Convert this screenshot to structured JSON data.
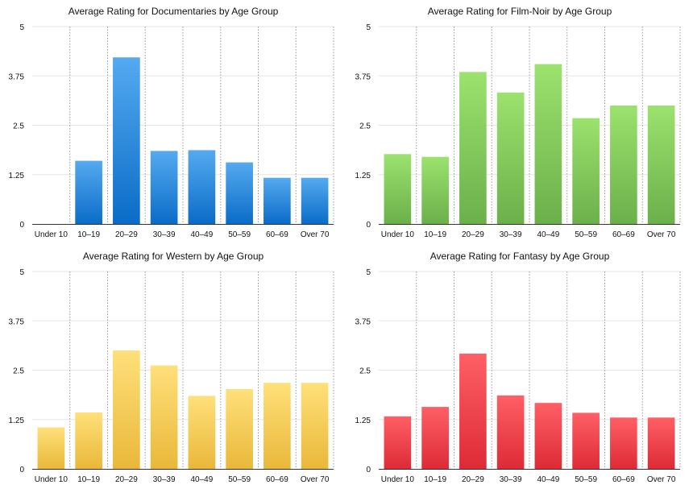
{
  "chart_data": [
    {
      "type": "bar",
      "title": "Average Rating for Documentaries by Age Group",
      "categories": [
        "Under 10",
        "10–19",
        "20–29",
        "30–39",
        "40–49",
        "50–59",
        "60–69",
        "Over 70"
      ],
      "values": [
        0,
        1.6,
        4.22,
        1.85,
        1.87,
        1.56,
        1.17,
        1.17
      ],
      "yticks": [
        "0",
        "1.25",
        "2.5",
        "3.75",
        "5"
      ],
      "ylim": [
        0,
        5
      ],
      "xlabel": "",
      "ylabel": "",
      "grid": true,
      "color_top": "#55aaf0",
      "color_bottom": "#0a6cc7"
    },
    {
      "type": "bar",
      "title": "Average Rating for Film-Noir by Age Group",
      "categories": [
        "Under 10",
        "10–19",
        "20–29",
        "30–39",
        "40–49",
        "50–59",
        "60–69",
        "Over 70"
      ],
      "values": [
        1.77,
        1.7,
        3.85,
        3.33,
        4.05,
        2.68,
        3.0,
        3.0
      ],
      "yticks": [
        "0",
        "1.25",
        "2.5",
        "3.75",
        "5"
      ],
      "ylim": [
        0,
        5
      ],
      "xlabel": "",
      "ylabel": "",
      "grid": true,
      "color_top": "#9be26e",
      "color_bottom": "#6bb04a"
    },
    {
      "type": "bar",
      "title": "Average Rating for Western by Age Group",
      "categories": [
        "Under 10",
        "10–19",
        "20–29",
        "30–39",
        "40–49",
        "50–59",
        "60–69",
        "Over 70"
      ],
      "values": [
        1.05,
        1.43,
        3.0,
        2.62,
        1.85,
        2.02,
        2.18,
        2.18
      ],
      "yticks": [
        "0",
        "1.25",
        "2.5",
        "3.75",
        "5"
      ],
      "ylim": [
        0,
        5
      ],
      "xlabel": "",
      "ylabel": "",
      "grid": true,
      "color_top": "#ffe07a",
      "color_bottom": "#e9b83a"
    },
    {
      "type": "bar",
      "title": "Average Rating for Fantasy by Age Group",
      "categories": [
        "Under 10",
        "10–19",
        "20–29",
        "30–39",
        "40–49",
        "50–59",
        "60–69",
        "Over 70"
      ],
      "values": [
        1.33,
        1.57,
        2.92,
        1.86,
        1.67,
        1.42,
        1.3,
        1.3
      ],
      "yticks": [
        "0",
        "1.25",
        "2.5",
        "3.75",
        "5"
      ],
      "ylim": [
        0,
        5
      ],
      "xlabel": "",
      "ylabel": "",
      "grid": true,
      "color_top": "#ff5f66",
      "color_bottom": "#dd2b36"
    }
  ]
}
